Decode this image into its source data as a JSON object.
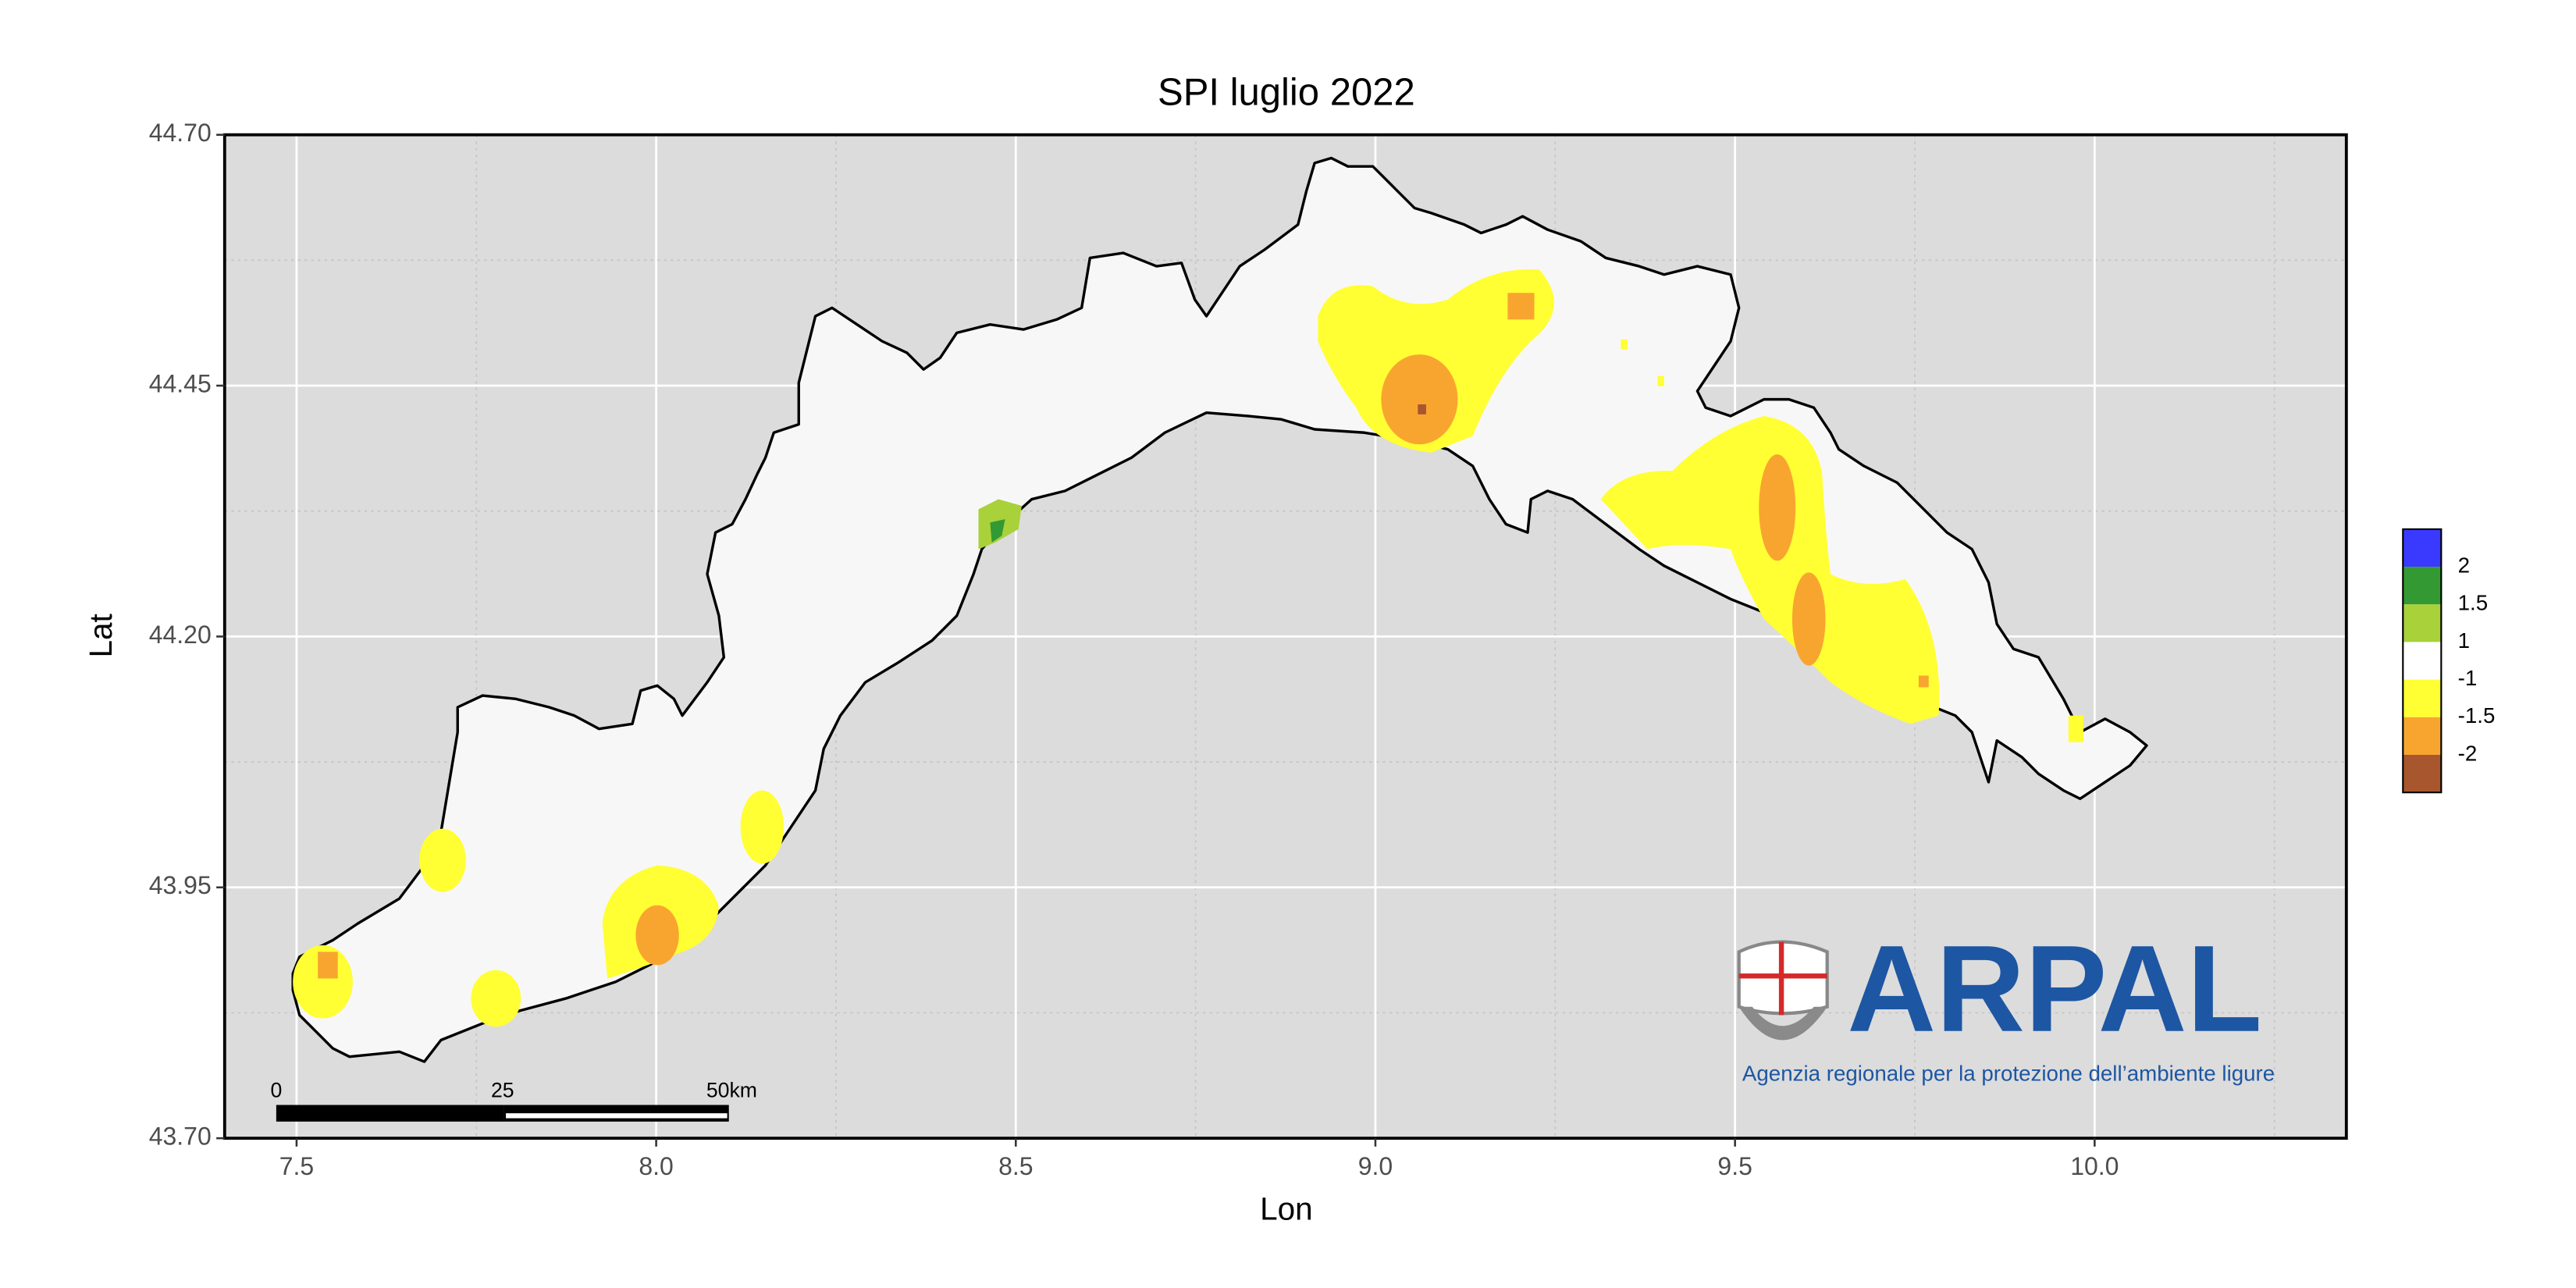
{
  "chart_data": {
    "type": "map",
    "title": "SPI luglio 2022",
    "x_label": "Lon",
    "y_label": "Lat",
    "xlim": [
      7.4,
      10.35
    ],
    "xticks": [
      7.5,
      {
        "value": 8,
        "label": "8.0"
      },
      8.5,
      {
        "value": 9,
        "label": "9.0"
      },
      9.5,
      {
        "value": 10,
        "label": "10.0"
      }
    ],
    "ylim": [
      43.7,
      44.7
    ],
    "yticks": [
      {
        "value": 43.7,
        "label": "43.70"
      },
      {
        "value": 43.95,
        "label": "43.95"
      },
      {
        "value": 44.2,
        "label": "44.20"
      },
      {
        "value": 44.45,
        "label": "44.45"
      },
      {
        "value": 44.7,
        "label": "44.70"
      }
    ],
    "grid": true,
    "legend": {
      "breaks": [
        2,
        1.5,
        1,
        -1,
        -1.5,
        -2
      ],
      "colors": [
        "#3a3aff",
        "#339933",
        "#a8d13a",
        "#ffffff",
        "#ffff33",
        "#f8a530",
        "#a8562e"
      ]
    },
    "scale_bar": {
      "ticks": [
        0,
        25,
        {
          "value": 50,
          "label": "50km"
        }
      ]
    },
    "logo": {
      "name": "ARPAL",
      "tagline": "Agenzia regionale per la protezione dell’ambiente ligure"
    }
  }
}
